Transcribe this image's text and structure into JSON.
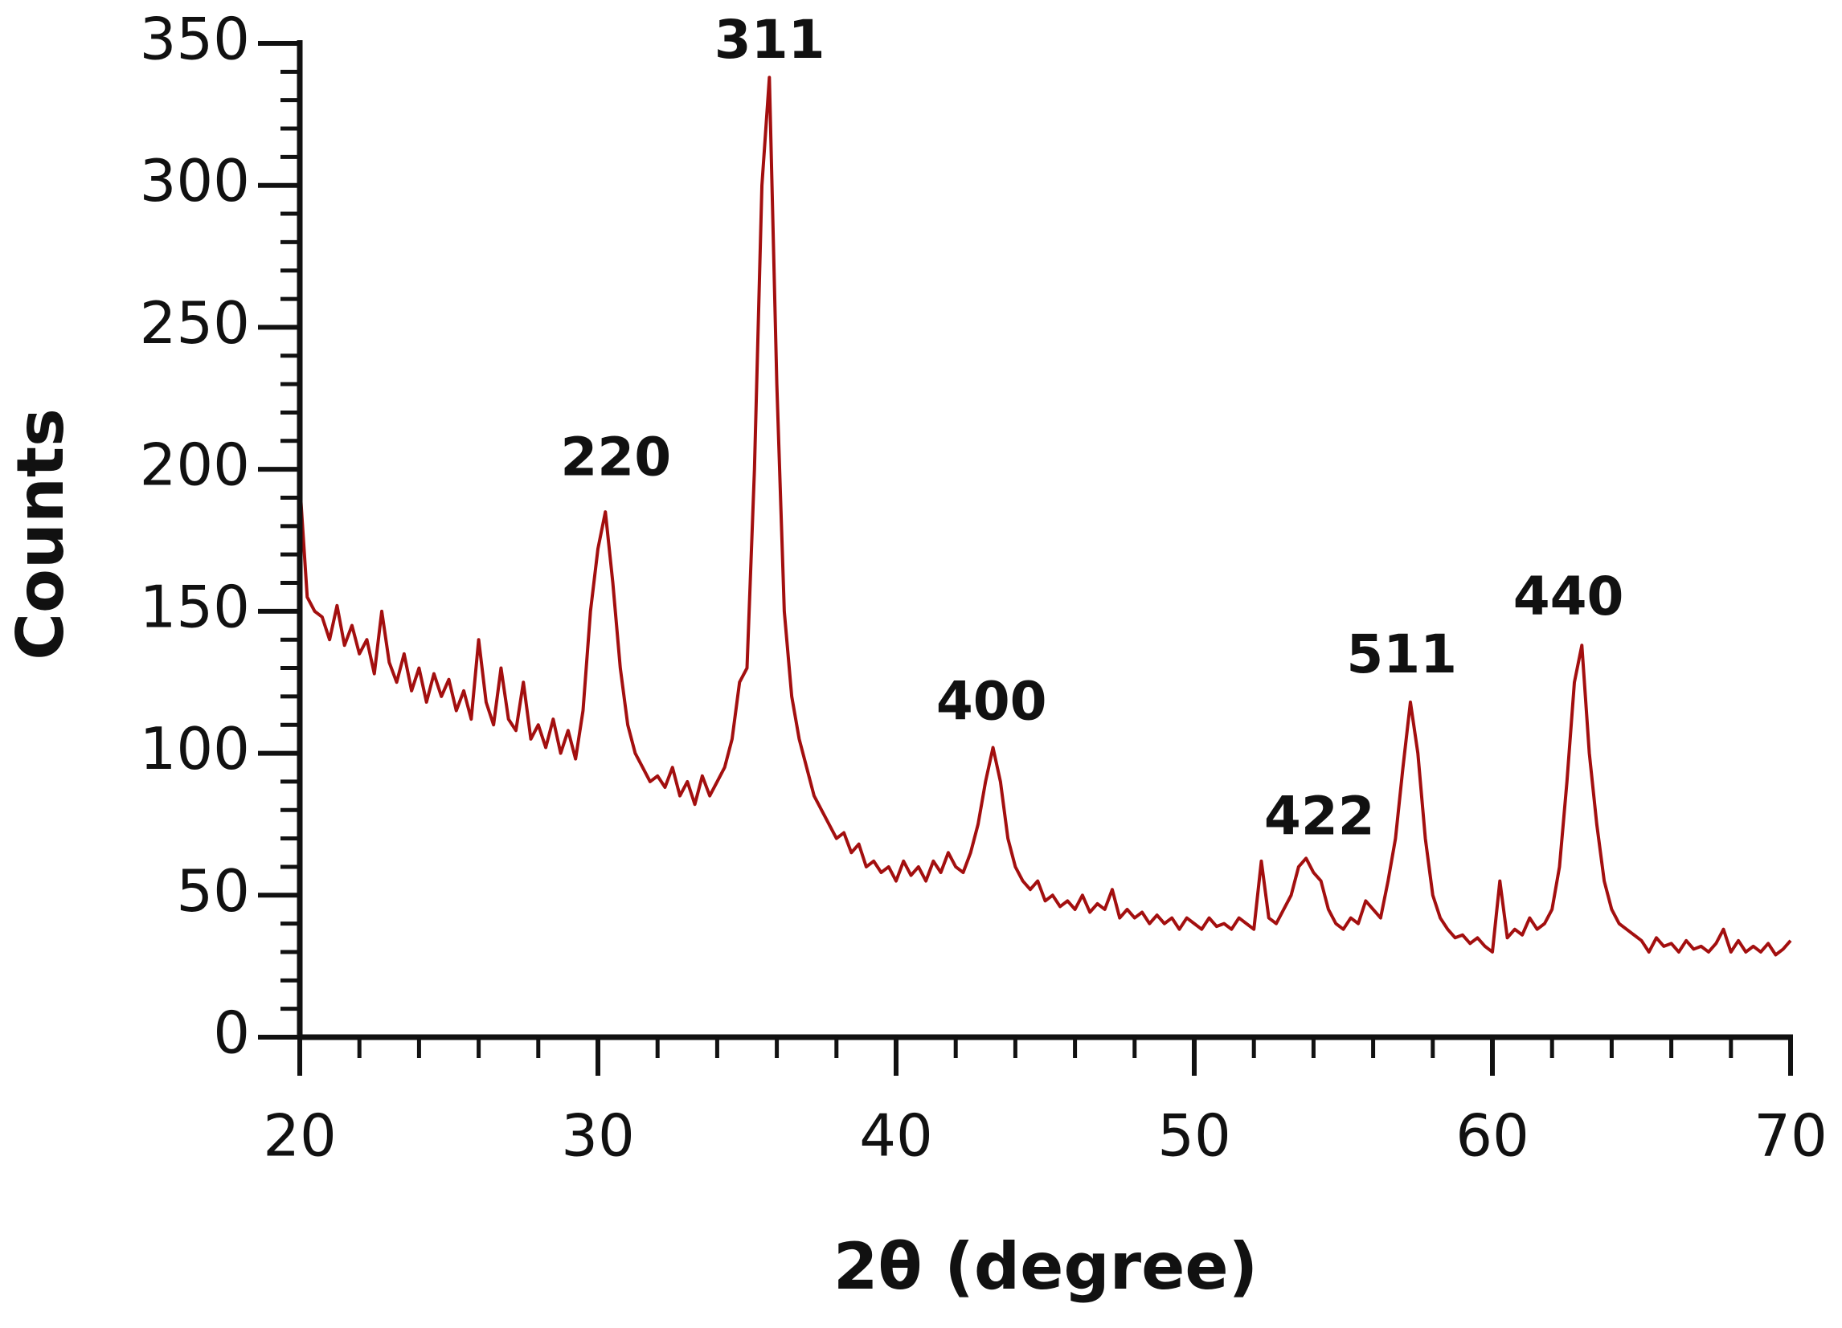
{
  "chart_data": {
    "type": "line",
    "xlabel": "2θ (degree)",
    "ylabel": "Counts",
    "color": "#a30f0f",
    "xlim": [
      20,
      70
    ],
    "ylim": [
      0,
      350
    ],
    "xticks": [
      20,
      30,
      40,
      50,
      60,
      70
    ],
    "yticks": [
      0,
      50,
      100,
      150,
      200,
      250,
      300,
      350
    ],
    "xticks_minor": [
      22,
      24,
      26,
      28,
      32,
      34,
      36,
      38,
      42,
      44,
      46,
      48,
      52,
      54,
      56,
      58,
      62,
      64,
      66,
      68
    ],
    "yticks_minor": [
      10,
      20,
      30,
      40,
      60,
      70,
      80,
      90,
      110,
      120,
      130,
      140,
      160,
      170,
      180,
      190,
      210,
      220,
      230,
      240,
      260,
      270,
      280,
      290,
      310,
      320,
      330,
      340
    ],
    "annotations": [
      {
        "text": "220",
        "x": 30.6,
        "y": 203
      },
      {
        "text": "311",
        "x": 35.76,
        "y": 350
      },
      {
        "text": "400",
        "x": 43.2,
        "y": 117
      },
      {
        "text": "422",
        "x": 54.2,
        "y": 76.5
      },
      {
        "text": "511",
        "x": 56.96,
        "y": 133.6
      },
      {
        "text": "440",
        "x": 62.55,
        "y": 154
      }
    ],
    "x": [
      20,
      20.25,
      20.5,
      20.75,
      21,
      21.25,
      21.5,
      21.75,
      22,
      22.25,
      22.5,
      22.75,
      23,
      23.25,
      23.5,
      23.75,
      24,
      24.25,
      24.5,
      24.75,
      25,
      25.25,
      25.5,
      25.75,
      26,
      26.25,
      26.5,
      26.75,
      27,
      27.25,
      27.5,
      27.75,
      28,
      28.25,
      28.5,
      28.75,
      29,
      29.25,
      29.5,
      29.75,
      30,
      30.25,
      30.5,
      30.75,
      31,
      31.25,
      31.5,
      31.75,
      32,
      32.25,
      32.5,
      32.75,
      33,
      33.25,
      33.5,
      33.75,
      34,
      34.25,
      34.5,
      34.75,
      35,
      35.25,
      35.5,
      35.75,
      36,
      36.25,
      36.5,
      36.75,
      37,
      37.25,
      37.5,
      37.75,
      38,
      38.25,
      38.5,
      38.75,
      39,
      39.25,
      39.5,
      39.75,
      40,
      40.25,
      40.5,
      40.75,
      41,
      41.25,
      41.5,
      41.75,
      42,
      42.25,
      42.5,
      42.75,
      43,
      43.25,
      43.5,
      43.75,
      44,
      44.25,
      44.5,
      44.75,
      45,
      45.25,
      45.5,
      45.75,
      46,
      46.25,
      46.5,
      46.75,
      47,
      47.25,
      47.5,
      47.75,
      48,
      48.25,
      48.5,
      48.75,
      49,
      49.25,
      49.5,
      49.75,
      50,
      50.25,
      50.5,
      50.75,
      51,
      51.25,
      51.5,
      51.75,
      52,
      52.25,
      52.5,
      52.75,
      53,
      53.25,
      53.5,
      53.75,
      54,
      54.25,
      54.5,
      54.75,
      55,
      55.25,
      55.5,
      55.75,
      56,
      56.25,
      56.5,
      56.75,
      57,
      57.25,
      57.5,
      57.75,
      58,
      58.25,
      58.5,
      58.75,
      59,
      59.25,
      59.5,
      59.75,
      60,
      60.25,
      60.5,
      60.75,
      61,
      61.25,
      61.5,
      61.75,
      62,
      62.25,
      62.5,
      62.75,
      63,
      63.25,
      63.5,
      63.75,
      64,
      64.25,
      64.5,
      64.75,
      65,
      65.25,
      65.5,
      65.75,
      66,
      66.25,
      66.5,
      66.75,
      67,
      67.25,
      67.5,
      67.75,
      68,
      68.25,
      68.5,
      68.75,
      69,
      69.25,
      69.5,
      69.75,
      70
    ],
    "values": [
      195,
      155,
      150,
      148,
      140,
      152,
      138,
      145,
      135,
      140,
      128,
      150,
      132,
      125,
      135,
      122,
      130,
      118,
      128,
      120,
      126,
      115,
      122,
      112,
      140,
      118,
      110,
      130,
      112,
      108,
      125,
      105,
      110,
      102,
      112,
      100,
      108,
      98,
      115,
      150,
      172,
      185,
      160,
      130,
      110,
      100,
      95,
      90,
      92,
      88,
      95,
      85,
      90,
      82,
      92,
      85,
      90,
      95,
      105,
      125,
      130,
      200,
      300,
      338,
      230,
      150,
      120,
      105,
      95,
      85,
      80,
      75,
      70,
      72,
      65,
      68,
      60,
      62,
      58,
      60,
      55,
      62,
      57,
      60,
      55,
      62,
      58,
      65,
      60,
      58,
      65,
      75,
      90,
      102,
      90,
      70,
      60,
      55,
      52,
      55,
      48,
      50,
      46,
      48,
      45,
      50,
      44,
      47,
      45,
      52,
      42,
      45,
      42,
      44,
      40,
      43,
      40,
      42,
      38,
      42,
      40,
      38,
      42,
      39,
      40,
      38,
      42,
      40,
      38,
      62,
      42,
      40,
      45,
      50,
      60,
      63,
      58,
      55,
      45,
      40,
      38,
      42,
      40,
      48,
      45,
      42,
      55,
      70,
      95,
      118,
      100,
      70,
      50,
      42,
      38,
      35,
      36,
      33,
      35,
      32,
      30,
      55,
      35,
      38,
      36,
      42,
      38,
      40,
      45,
      60,
      90,
      125,
      138,
      100,
      75,
      55,
      45,
      40,
      38,
      36,
      34,
      30,
      35,
      32,
      33,
      30,
      34,
      31,
      32,
      30,
      33,
      38,
      30,
      34,
      30,
      32,
      30,
      33,
      29,
      31,
      34
    ]
  }
}
